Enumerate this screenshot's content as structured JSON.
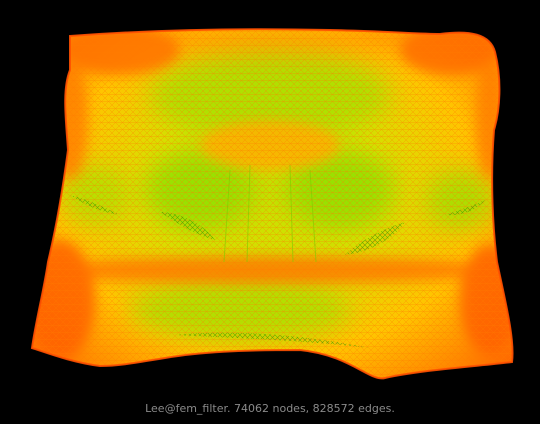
{
  "caption": "Lee@fem_filter. 74062 nodes, 828572 edges.",
  "colors": {
    "background": "#000000",
    "edge_outer": "#ff5a00",
    "edge_mid": "#ffa500",
    "edge_inner": "#ffdd00",
    "edge_dense": "#7ddf00",
    "caption_text": "#8a8a8a"
  }
}
